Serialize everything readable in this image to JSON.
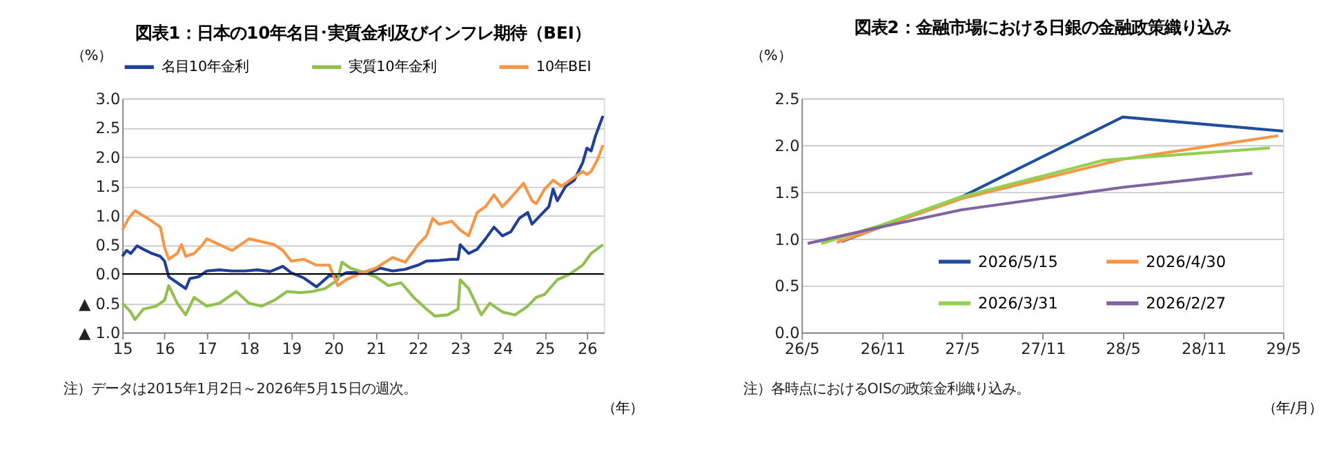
{
  "chart_data": [
    {
      "type": "line",
      "title": "図表1：日本の10年名目･実質金利及びインフレ期待（BEI）",
      "ylabel": "（%）",
      "xlabel": "（年）",
      "xlim": [
        2015,
        2026.4
      ],
      "xticks": [
        {
          "value": 2015,
          "label": "15"
        },
        {
          "value": 2016,
          "label": "16"
        },
        {
          "value": 2017,
          "label": "17"
        },
        {
          "value": 2018,
          "label": "18"
        },
        {
          "value": 2019,
          "label": "19"
        },
        {
          "value": 2020,
          "label": "20"
        },
        {
          "value": 2021,
          "label": "21"
        },
        {
          "value": 2022,
          "label": "22"
        },
        {
          "value": 2023,
          "label": "23"
        },
        {
          "value": 2024,
          "label": "24"
        },
        {
          "value": 2025,
          "label": "25"
        },
        {
          "value": 2026,
          "label": "26"
        }
      ],
      "ylim": [
        -1,
        3
      ],
      "yticks": [
        {
          "value": -1,
          "label": "▲ 1.0"
        },
        {
          "value": -0.5,
          "label": "▲ 0.5"
        },
        {
          "value": 0,
          "label": "0.0"
        },
        {
          "value": 0.5,
          "label": "0.5"
        },
        {
          "value": 1,
          "label": "1.0"
        },
        {
          "value": 1.5,
          "label": "1.5"
        },
        {
          "value": 2,
          "label": "2.0"
        },
        {
          "value": 2.5,
          "label": "2.5"
        },
        {
          "value": 3,
          "label": "3.0"
        }
      ],
      "grid": "y",
      "legend": "top",
      "line_style": "solid",
      "marker": "none",
      "ref_lines": [
        {
          "axis": "y",
          "value": 0,
          "color": "#000000"
        }
      ],
      "annotations": [
        "注）データは2015年1月2日～2026年5月15日の週次。"
      ],
      "series": [
        {
          "name": "名目10年金利",
          "color": "#1f3f99",
          "x": [
            2015.0,
            2015.1,
            2015.2,
            2015.35,
            2015.5,
            2015.7,
            2015.9,
            2016.0,
            2016.1,
            2016.3,
            2016.5,
            2016.6,
            2016.8,
            2017.0,
            2017.3,
            2017.6,
            2017.9,
            2018.2,
            2018.5,
            2018.8,
            2019.0,
            2019.3,
            2019.6,
            2019.9,
            2020.1,
            2020.3,
            2020.6,
            2020.9,
            2021.1,
            2021.4,
            2021.7,
            2022.0,
            2022.2,
            2022.5,
            2022.8,
            2022.95,
            2023.0,
            2023.2,
            2023.4,
            2023.6,
            2023.8,
            2024.0,
            2024.2,
            2024.4,
            2024.6,
            2024.7,
            2024.9,
            2025.1,
            2025.2,
            2025.3,
            2025.5,
            2025.7,
            2025.9,
            2026.0,
            2026.1,
            2026.2,
            2026.38
          ],
          "values": [
            0.3,
            0.4,
            0.35,
            0.48,
            0.42,
            0.35,
            0.3,
            0.22,
            -0.05,
            -0.15,
            -0.25,
            -0.08,
            -0.05,
            0.05,
            0.07,
            0.05,
            0.05,
            0.07,
            0.04,
            0.13,
            0.02,
            -0.07,
            -0.22,
            -0.03,
            -0.05,
            0.02,
            0.03,
            0.03,
            0.1,
            0.05,
            0.08,
            0.15,
            0.22,
            0.23,
            0.25,
            0.25,
            0.5,
            0.35,
            0.42,
            0.6,
            0.8,
            0.65,
            0.72,
            0.95,
            1.05,
            0.85,
            1.0,
            1.15,
            1.45,
            1.25,
            1.5,
            1.6,
            1.9,
            2.15,
            2.1,
            2.35,
            2.7
          ]
        },
        {
          "name": "実質10年金利",
          "color": "#92c050",
          "x": [
            2015.0,
            2015.2,
            2015.3,
            2015.5,
            2015.8,
            2016.0,
            2016.1,
            2016.3,
            2016.5,
            2016.7,
            2017.0,
            2017.3,
            2017.7,
            2018.0,
            2018.3,
            2018.6,
            2018.9,
            2019.2,
            2019.5,
            2019.8,
            2020.1,
            2020.2,
            2020.4,
            2020.7,
            2021.0,
            2021.3,
            2021.6,
            2021.9,
            2022.2,
            2022.4,
            2022.7,
            2022.95,
            2023.0,
            2023.2,
            2023.5,
            2023.7,
            2024.0,
            2024.3,
            2024.6,
            2024.8,
            2025.0,
            2025.3,
            2025.6,
            2025.9,
            2026.1,
            2026.38
          ],
          "values": [
            -0.5,
            -0.65,
            -0.78,
            -0.6,
            -0.55,
            -0.45,
            -0.2,
            -0.5,
            -0.7,
            -0.4,
            -0.55,
            -0.5,
            -0.3,
            -0.5,
            -0.55,
            -0.45,
            -0.3,
            -0.32,
            -0.3,
            -0.25,
            -0.1,
            0.2,
            0.1,
            0.03,
            -0.05,
            -0.2,
            -0.15,
            -0.4,
            -0.6,
            -0.72,
            -0.7,
            -0.6,
            -0.1,
            -0.25,
            -0.7,
            -0.5,
            -0.65,
            -0.7,
            -0.55,
            -0.4,
            -0.35,
            -0.1,
            0.0,
            0.15,
            0.35,
            0.5
          ]
        },
        {
          "name": "10年BEI",
          "color": "#f79646",
          "x": [
            2015.0,
            2015.15,
            2015.3,
            2015.6,
            2015.9,
            2016.0,
            2016.1,
            2016.3,
            2016.4,
            2016.5,
            2016.7,
            2016.9,
            2017.0,
            2017.3,
            2017.6,
            2017.8,
            2018.0,
            2018.3,
            2018.6,
            2018.8,
            2019.0,
            2019.3,
            2019.6,
            2019.9,
            2020.1,
            2020.3,
            2020.6,
            2021.0,
            2021.4,
            2021.7,
            2022.0,
            2022.2,
            2022.35,
            2022.5,
            2022.8,
            2023.0,
            2023.2,
            2023.4,
            2023.6,
            2023.8,
            2024.0,
            2024.2,
            2024.5,
            2024.7,
            2024.8,
            2025.0,
            2025.2,
            2025.4,
            2025.6,
            2025.9,
            2026.0,
            2026.1,
            2026.25,
            2026.38
          ],
          "values": [
            0.75,
            0.95,
            1.08,
            0.95,
            0.8,
            0.45,
            0.25,
            0.35,
            0.5,
            0.3,
            0.35,
            0.5,
            0.6,
            0.5,
            0.4,
            0.5,
            0.6,
            0.55,
            0.5,
            0.4,
            0.22,
            0.25,
            0.15,
            0.15,
            -0.2,
            -0.1,
            0.0,
            0.1,
            0.28,
            0.2,
            0.5,
            0.65,
            0.95,
            0.85,
            0.9,
            0.75,
            0.65,
            1.05,
            1.15,
            1.35,
            1.15,
            1.3,
            1.55,
            1.25,
            1.2,
            1.45,
            1.6,
            1.5,
            1.6,
            1.75,
            1.7,
            1.75,
            1.95,
            2.2
          ]
        }
      ]
    },
    {
      "type": "line",
      "title": "図表2：金融市場における日銀の金融政策織り込み",
      "ylabel": "（%）",
      "xlabel": "（年/月）",
      "xlim": [
        "2026-05-01",
        "2029-05-01"
      ],
      "xticks": [
        {
          "value": "2026-05-01",
          "label": "26/5"
        },
        {
          "value": "2026-11-01",
          "label": "26/11"
        },
        {
          "value": "2027-05-01",
          "label": "27/5"
        },
        {
          "value": "2027-11-01",
          "label": "27/11"
        },
        {
          "value": "2028-05-01",
          "label": "28/5"
        },
        {
          "value": "2028-11-01",
          "label": "28/11"
        },
        {
          "value": "2029-05-01",
          "label": "29/5"
        }
      ],
      "ylim": [
        0,
        2.5
      ],
      "yticks": [
        {
          "value": 0,
          "label": "0.0"
        },
        {
          "value": 0.5,
          "label": "0.5"
        },
        {
          "value": 1,
          "label": "1.0"
        },
        {
          "value": 1.5,
          "label": "1.5"
        },
        {
          "value": 2,
          "label": "2.0"
        },
        {
          "value": 2.5,
          "label": "2.5"
        }
      ],
      "grid": "y",
      "legend": "bottom right",
      "line_style": "solid",
      "marker": "none",
      "annotations": [
        "注）各時点におけるOISの政策金利織り込み。"
      ],
      "series": [
        {
          "name": "2026/5/15",
          "color": "#1f4e9c",
          "x": [
            "2026-07-31",
            "2027-05-01",
            "2028-05-01",
            "2029-05-01"
          ],
          "values": [
            0.97,
            1.45,
            2.3,
            2.15
          ]
        },
        {
          "name": "2026/4/30",
          "color": "#f79646",
          "x": [
            "2026-07-20",
            "2027-05-01",
            "2028-05-01",
            "2029-04-20"
          ],
          "values": [
            0.96,
            1.43,
            1.85,
            2.1
          ]
        },
        {
          "name": "2026/3/31",
          "color": "#92d050",
          "x": [
            "2026-06-15",
            "2026-11-01",
            "2027-05-01",
            "2028-03-20",
            "2029-04-01"
          ],
          "values": [
            0.95,
            1.15,
            1.45,
            1.84,
            1.97
          ]
        },
        {
          "name": "2026/2/27",
          "color": "#8064a2",
          "x": [
            "2026-05-15",
            "2026-11-01",
            "2027-05-01",
            "2028-05-01",
            "2029-02-20"
          ],
          "values": [
            0.95,
            1.13,
            1.31,
            1.55,
            1.7
          ]
        }
      ]
    }
  ]
}
